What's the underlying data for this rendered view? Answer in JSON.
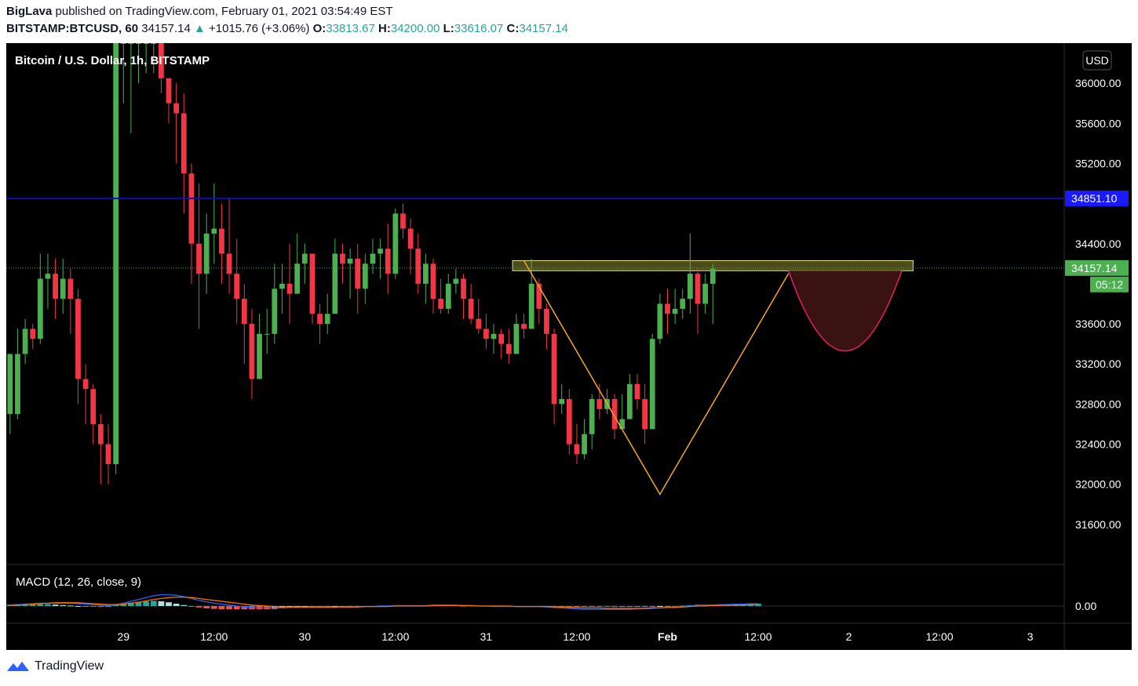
{
  "publish": {
    "author": "BigLava",
    "line": "published on TradingView.com, February 01, 2021 03:54:49 EST"
  },
  "quote": {
    "symbol": "BITSTAMP:BTCUSD, 60",
    "last": "34157.14",
    "arrow": "▲",
    "change": "+1015.76 (+3.06%)",
    "o_label": "O:",
    "o": "33813.67",
    "h_label": "H:",
    "h": "34200.00",
    "l_label": "L:",
    "l": "33616.07",
    "c_label": "C:",
    "c": "34157.14"
  },
  "legend": "Bitcoin / U.S. Dollar, 1h, BITSTAMP",
  "currency_button": "USD",
  "macd_label": "MACD (12, 26, close, 9)",
  "footer_brand": "TradingView",
  "colors": {
    "background": "#000000",
    "up": "#4caf50",
    "down": "#f23645",
    "resistance": "#0c0cb4",
    "pattern": "#f5a623",
    "cup": "#e91e63",
    "cup_fill": "#3a1212",
    "zone": "#8b8b2f",
    "macd_line": "#2962ff",
    "signal_line": "#ff6d00"
  },
  "chart_data": {
    "type": "candlestick",
    "title": "Bitcoin / U.S. Dollar, 1h, BITSTAMP",
    "ylim": [
      31200,
      36400
    ],
    "y_ticks": [
      31600,
      32000,
      32400,
      32800,
      33200,
      33600,
      34000,
      34400,
      34800,
      35200,
      35600,
      36000
    ],
    "y_tick_labels": [
      "31600.00",
      "32000.00",
      "32400.00",
      "32800.00",
      "33200.00",
      "33600.00",
      "",
      "34400.00",
      "",
      "35200.00",
      "35600.00",
      "36000.00"
    ],
    "x_ticks": [
      {
        "label": "29",
        "bar": 15
      },
      {
        "label": "12:00",
        "bar": 27
      },
      {
        "label": "30",
        "bar": 39
      },
      {
        "label": "12:00",
        "bar": 51
      },
      {
        "label": "31",
        "bar": 63
      },
      {
        "label": "12:00",
        "bar": 75
      },
      {
        "label": "Feb",
        "bar": 87
      },
      {
        "label": "12:00",
        "bar": 99
      },
      {
        "label": "2",
        "bar": 111
      },
      {
        "label": "12:00",
        "bar": 123
      },
      {
        "label": "3",
        "bar": 135
      }
    ],
    "total_bars": 140,
    "candles": [
      [
        32700,
        33300,
        32500,
        32700
      ],
      [
        32700,
        33300,
        33550,
        32650
      ],
      [
        33300,
        33550,
        33650,
        33200
      ],
      [
        33550,
        33450,
        33600,
        33350
      ],
      [
        33450,
        34050,
        34300,
        33400
      ],
      [
        34050,
        34100,
        34300,
        33750
      ],
      [
        34100,
        33850,
        34250,
        33650
      ],
      [
        33850,
        34050,
        34250,
        33700
      ],
      [
        34050,
        33850,
        34150,
        33500
      ],
      [
        33850,
        33050,
        33950,
        32800
      ],
      [
        33050,
        32950,
        33200,
        32600
      ],
      [
        32950,
        32600,
        33000,
        32400
      ],
      [
        32600,
        32400,
        32700,
        32000
      ],
      [
        32400,
        32200,
        32600,
        32000
      ],
      [
        32200,
        36400,
        36400,
        32100
      ],
      [
        36400,
        36400,
        36400,
        35800
      ],
      [
        36400,
        36400,
        36400,
        35500
      ],
      [
        36400,
        36400,
        36400,
        36000
      ],
      [
        36400,
        36400,
        36400,
        36100
      ],
      [
        36400,
        36400,
        36400,
        36100
      ],
      [
        36400,
        36050,
        36400,
        35900
      ],
      [
        36050,
        35800,
        36050,
        35600
      ],
      [
        35800,
        35700,
        36000,
        35200
      ],
      [
        35700,
        35100,
        35900,
        34700
      ],
      [
        35100,
        34400,
        35200,
        34000
      ],
      [
        34400,
        34100,
        35000,
        33550
      ],
      [
        34100,
        34500,
        34700,
        33900
      ],
      [
        34500,
        34550,
        35000,
        34200
      ],
      [
        34550,
        34300,
        34800,
        34000
      ],
      [
        34300,
        34100,
        34850,
        33900
      ],
      [
        34100,
        33850,
        34450,
        33600
      ],
      [
        33850,
        33600,
        34000,
        33200
      ],
      [
        33600,
        33050,
        33750,
        32850
      ],
      [
        33050,
        33500,
        33700,
        33100
      ],
      [
        33500,
        33500,
        33750,
        33300
      ],
      [
        33500,
        33950,
        34200,
        33400
      ],
      [
        33950,
        34000,
        34200,
        33700
      ],
      [
        34000,
        33900,
        34400,
        33600
      ],
      [
        33900,
        34200,
        34500,
        33900
      ],
      [
        34200,
        34300,
        34400,
        34000
      ],
      [
        34300,
        33700,
        34300,
        33600
      ],
      [
        33700,
        33600,
        33800,
        33400
      ],
      [
        33600,
        33700,
        33900,
        33500
      ],
      [
        33700,
        34300,
        34450,
        33700
      ],
      [
        34300,
        34200,
        34400,
        34000
      ],
      [
        34200,
        34250,
        34350,
        33850
      ],
      [
        34250,
        33950,
        34400,
        33700
      ],
      [
        33950,
        34200,
        34300,
        33800
      ],
      [
        34200,
        34300,
        34450,
        34100
      ],
      [
        34300,
        34350,
        34450,
        34050
      ],
      [
        34350,
        34100,
        34600,
        33900
      ],
      [
        34100,
        34700,
        34750,
        34050
      ],
      [
        34700,
        34550,
        34800,
        34450
      ],
      [
        34550,
        34350,
        34650,
        34100
      ],
      [
        34350,
        34000,
        34500,
        33900
      ],
      [
        34000,
        34200,
        34300,
        33800
      ],
      [
        34200,
        33850,
        34250,
        33700
      ],
      [
        33850,
        33750,
        34050,
        33700
      ],
      [
        33750,
        34000,
        34100,
        33700
      ],
      [
        34000,
        34050,
        34150,
        33900
      ],
      [
        34050,
        33850,
        34100,
        33650
      ],
      [
        33850,
        33650,
        34000,
        33600
      ],
      [
        33650,
        33550,
        33850,
        33500
      ],
      [
        33550,
        33450,
        33700,
        33350
      ],
      [
        33450,
        33500,
        33600,
        33300
      ],
      [
        33500,
        33400,
        33550,
        33250
      ],
      [
        33400,
        33300,
        33550,
        33200
      ],
      [
        33300,
        33600,
        33700,
        33300
      ],
      [
        33600,
        33550,
        33700,
        33450
      ],
      [
        33550,
        34000,
        34250,
        33550
      ],
      [
        34000,
        33750,
        34050,
        33600
      ],
      [
        33750,
        33500,
        33800,
        33350
      ],
      [
        33500,
        32800,
        33550,
        32600
      ],
      [
        32800,
        32850,
        33000,
        32700
      ],
      [
        32850,
        32400,
        32950,
        32300
      ],
      [
        32400,
        32300,
        32600,
        32200
      ],
      [
        32300,
        32500,
        32650,
        32250
      ],
      [
        32500,
        32850,
        32900,
        32350
      ],
      [
        32850,
        32750,
        33000,
        32650
      ],
      [
        32750,
        32850,
        32950,
        32700
      ],
      [
        32850,
        32550,
        32900,
        32450
      ],
      [
        32550,
        32650,
        32900,
        32550
      ],
      [
        32650,
        33000,
        33100,
        32650
      ],
      [
        33000,
        32850,
        33100,
        32750
      ],
      [
        32850,
        32550,
        33000,
        32400
      ],
      [
        32550,
        33450,
        33500,
        32550
      ],
      [
        33450,
        33800,
        33900,
        33400
      ],
      [
        33800,
        33700,
        33950,
        33500
      ],
      [
        33700,
        33750,
        33950,
        33600
      ],
      [
        33750,
        33850,
        33950,
        33650
      ],
      [
        33850,
        34100,
        34500,
        33700
      ],
      [
        34100,
        33800,
        34150,
        33500
      ],
      [
        33800,
        34000,
        34100,
        33700
      ],
      [
        34000,
        34150,
        34200,
        33600
      ]
    ],
    "resistance_level": 34851.1,
    "resistance_label": "34851.10",
    "last_price": 34157.14,
    "last_price_label": "34157.14",
    "countdown": "05:12",
    "zone": {
      "from_bar": 67,
      "to_bar": 120,
      "low": 34130,
      "high": 34230
    },
    "pattern_v": [
      {
        "bar": 68,
        "price": 34230
      },
      {
        "bar": 86,
        "price": 31900
      },
      {
        "bar": 103,
        "price": 34100
      }
    ],
    "cup": {
      "from_bar": 103,
      "to_bar": 118,
      "top": 34130,
      "bottom": 33330
    },
    "macd": {
      "label": "MACD (12, 26, close, 9)",
      "zero_label": "0.00",
      "histogram": [
        0.3,
        0.4,
        0.4,
        0.4,
        0.4,
        0.4,
        0.3,
        0.2,
        0.1,
        0.0,
        -0.1,
        -0.1,
        -0.2,
        -0.2,
        0.3,
        0.5,
        0.7,
        0.9,
        1.0,
        1.1,
        1.0,
        0.8,
        0.5,
        0.2,
        -0.1,
        -0.3,
        -0.5,
        -0.6,
        -0.7,
        -0.7,
        -0.7,
        -0.7,
        -0.7,
        -0.7,
        -0.7,
        -0.6,
        -0.5,
        -0.4,
        -0.3,
        -0.2,
        -0.2,
        -0.2,
        -0.2,
        -0.1,
        -0.1,
        -0.1,
        -0.1,
        0.0,
        0.0,
        0.1,
        0.1,
        0.1,
        0.1,
        0.1,
        0.1,
        0.1,
        0.2,
        0.2,
        0.2,
        0.2,
        0.1,
        0.1,
        0.1,
        0.1,
        0.1,
        0.0,
        0.0,
        0.0,
        0.0,
        0.0,
        0.0,
        0.0,
        -0.1,
        -0.1,
        -0.1,
        -0.1,
        -0.1,
        -0.1,
        -0.1,
        -0.1,
        -0.2,
        -0.2,
        -0.2,
        -0.2,
        -0.2,
        -0.2,
        -0.1,
        -0.1,
        0.0,
        0.1,
        0.2,
        0.3,
        0.3,
        0.3,
        0.3,
        0.4,
        0.4,
        0.4,
        0.4,
        0.5
      ],
      "macd_line": [
        0.2,
        0.3,
        0.4,
        0.5,
        0.6,
        0.6,
        0.6,
        0.6,
        0.6,
        0.5,
        0.4,
        0.3,
        0.2,
        0.1,
        0.3,
        0.6,
        1.0,
        1.4,
        1.8,
        2.2,
        2.4,
        2.4,
        2.3,
        2.0,
        1.6,
        1.2,
        0.9,
        0.6,
        0.4,
        0.2,
        0.0,
        -0.2,
        -0.3,
        -0.4,
        -0.4,
        -0.4,
        -0.4,
        -0.3,
        -0.3,
        -0.3,
        -0.3,
        -0.3,
        -0.3,
        -0.3,
        -0.2,
        -0.2,
        -0.2,
        -0.1,
        -0.1,
        0.0,
        0.0,
        0.1,
        0.1,
        0.1,
        0.1,
        0.1,
        0.2,
        0.2,
        0.2,
        0.2,
        0.1,
        0.1,
        0.0,
        0.0,
        -0.1,
        -0.1,
        -0.1,
        -0.1,
        -0.1,
        -0.1,
        -0.1,
        -0.2,
        -0.3,
        -0.4,
        -0.5,
        -0.6,
        -0.7,
        -0.7,
        -0.7,
        -0.7,
        -0.7,
        -0.7,
        -0.7,
        -0.6,
        -0.6,
        -0.5,
        -0.4,
        -0.3,
        -0.2,
        -0.1,
        0.0,
        0.1,
        0.2,
        0.2,
        0.3,
        0.3,
        0.4,
        0.4,
        0.5,
        0.5
      ],
      "signal_line": [
        0.1,
        0.2,
        0.3,
        0.4,
        0.5,
        0.6,
        0.7,
        0.7,
        0.7,
        0.7,
        0.6,
        0.5,
        0.4,
        0.3,
        0.3,
        0.4,
        0.6,
        0.8,
        1.1,
        1.4,
        1.6,
        1.8,
        1.9,
        1.9,
        1.8,
        1.6,
        1.4,
        1.2,
        1.0,
        0.8,
        0.6,
        0.4,
        0.2,
        0.1,
        0.0,
        -0.1,
        -0.2,
        -0.2,
        -0.2,
        -0.2,
        -0.2,
        -0.2,
        -0.2,
        -0.2,
        -0.2,
        -0.2,
        -0.2,
        -0.1,
        -0.1,
        -0.1,
        -0.1,
        0.0,
        0.0,
        0.0,
        0.0,
        0.0,
        0.1,
        0.1,
        0.1,
        0.1,
        0.1,
        0.1,
        0.0,
        0.0,
        0.0,
        0.0,
        0.0,
        -0.1,
        -0.1,
        -0.1,
        -0.1,
        -0.1,
        -0.2,
        -0.2,
        -0.3,
        -0.3,
        -0.4,
        -0.4,
        -0.4,
        -0.5,
        -0.5,
        -0.5,
        -0.5,
        -0.5,
        -0.5,
        -0.4,
        -0.4,
        -0.3,
        -0.3,
        -0.2,
        -0.1,
        0.0,
        0.0,
        0.1,
        0.1,
        0.2,
        0.2,
        0.2,
        0.3,
        0.3
      ]
    }
  }
}
